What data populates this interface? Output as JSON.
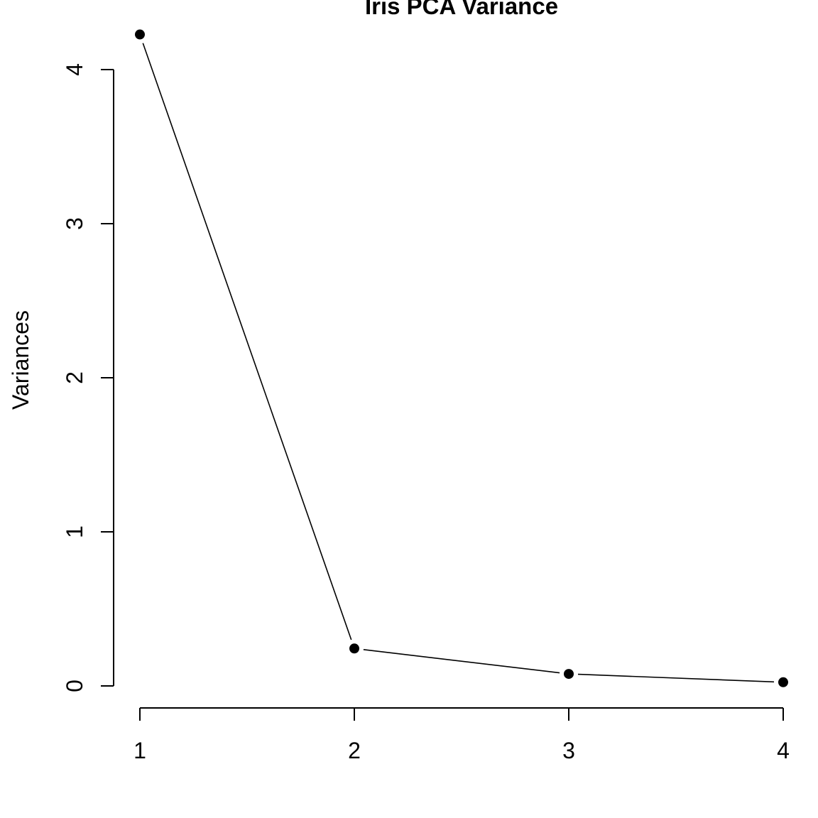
{
  "chart_data": {
    "type": "line",
    "title": "Iris PCA Variance",
    "xlabel": "",
    "ylabel": "Variances",
    "x": [
      1,
      2,
      3,
      4
    ],
    "values": [
      4.228,
      0.243,
      0.078,
      0.024
    ],
    "xlim": [
      1,
      4
    ],
    "ylim": [
      0,
      4
    ],
    "x_ticks": [
      "1",
      "2",
      "3",
      "4"
    ],
    "y_ticks": [
      "0",
      "1",
      "2",
      "3",
      "4"
    ],
    "grid": false,
    "legend": "none",
    "colors": {
      "line": "#000000",
      "points": "#000000",
      "background": "#ffffff"
    }
  }
}
